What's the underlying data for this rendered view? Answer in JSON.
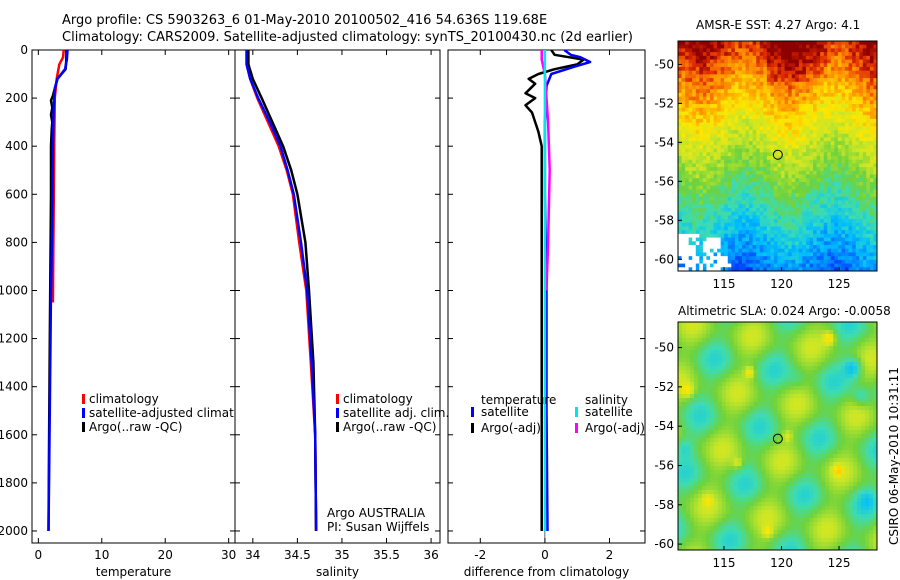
{
  "header": {
    "line1": "Argo profile: CS 5903263_6 01-May-2010 20100502_416 54.636S 119.68E",
    "line2": "Climatology: CARS2009. Satellite-adjusted climatology: synTS_20100430.nc (2d earlier)"
  },
  "footer_stamp": "CSIRO 06-May-2010 10:31:11",
  "colors": {
    "climatology": "#ff0000",
    "satellite": "#0000ff",
    "argo": "#000000",
    "salinity_satellite": "#00e5ee",
    "salinity_argo": "#ff00ff"
  },
  "chart_data": [
    {
      "type": "line",
      "panel": "temperature",
      "xlabel": "temperature",
      "ylabel": "depth",
      "xlim": [
        -1,
        31
      ],
      "ylim": [
        0,
        2050
      ],
      "yreversed": true,
      "xticks": [
        0,
        10,
        20,
        30
      ],
      "yticks": [
        0,
        200,
        400,
        600,
        800,
        1000,
        1200,
        1400,
        1600,
        1800,
        2000
      ],
      "legend": [
        {
          "label": "climatology",
          "color": "#ff0000"
        },
        {
          "label": "satellite-adjusted climatology",
          "color": "#0000ff"
        },
        {
          "label": "Argo(..raw -QC)",
          "color": "#000000"
        }
      ],
      "series": [
        {
          "name": "climatology",
          "color": "#ff0000",
          "points": [
            [
              4.0,
              0
            ],
            [
              3.9,
              30
            ],
            [
              3.3,
              60
            ],
            [
              2.9,
              120
            ],
            [
              2.6,
              200
            ],
            [
              2.5,
              400
            ],
            [
              2.4,
              700
            ],
            [
              2.3,
              1050
            ]
          ]
        },
        {
          "name": "Argo",
          "color": "#000000",
          "points": [
            [
              4.4,
              0
            ],
            [
              4.4,
              40
            ],
            [
              4.3,
              80
            ],
            [
              3.0,
              120
            ],
            [
              2.6,
              160
            ],
            [
              2.3,
              190
            ],
            [
              2.0,
              210
            ],
            [
              2.2,
              240
            ],
            [
              2.0,
              270
            ],
            [
              2.2,
              300
            ],
            [
              2.1,
              330
            ],
            [
              2.0,
              400
            ],
            [
              2.0,
              600
            ],
            [
              1.9,
              900
            ],
            [
              1.8,
              1200
            ],
            [
              1.7,
              1600
            ],
            [
              1.6,
              2000
            ]
          ]
        },
        {
          "name": "satellite-adjusted climatology",
          "color": "#0000ff",
          "points": [
            [
              4.6,
              0
            ],
            [
              4.5,
              40
            ],
            [
              4.2,
              80
            ],
            [
              3.0,
              120
            ],
            [
              2.6,
              160
            ],
            [
              2.4,
              250
            ],
            [
              2.3,
              400
            ],
            [
              2.2,
              700
            ],
            [
              2.0,
              1000
            ],
            [
              1.8,
              1500
            ],
            [
              1.6,
              2000
            ]
          ]
        }
      ]
    },
    {
      "type": "line",
      "panel": "salinity",
      "xlabel": "salinity",
      "xlim": [
        33.8,
        36.1
      ],
      "ylim": [
        0,
        2050
      ],
      "yreversed": true,
      "xticks": [
        34,
        34.5,
        35,
        35.5,
        36
      ],
      "legend": [
        {
          "label": "climatology",
          "color": "#ff0000"
        },
        {
          "label": "satellite adj. clim.",
          "color": "#0000ff"
        },
        {
          "label": "Argo(..raw -QC)",
          "color": "#000000"
        }
      ],
      "annotation": [
        "Argo AUSTRALIA",
        "PI: Susan Wijffels"
      ],
      "series": [
        {
          "name": "climatology",
          "color": "#ff0000",
          "points": [
            [
              33.93,
              0
            ],
            [
              33.93,
              60
            ],
            [
              33.97,
              120
            ],
            [
              34.05,
              200
            ],
            [
              34.17,
              300
            ],
            [
              34.29,
              400
            ],
            [
              34.38,
              500
            ],
            [
              34.45,
              600
            ],
            [
              34.52,
              800
            ],
            [
              34.6,
              1000
            ],
            [
              34.65,
              1300
            ],
            [
              34.7,
              1600
            ],
            [
              34.71,
              2000
            ]
          ]
        },
        {
          "name": "Argo",
          "color": "#000000",
          "points": [
            [
              33.95,
              0
            ],
            [
              33.95,
              60
            ],
            [
              34.0,
              120
            ],
            [
              34.1,
              200
            ],
            [
              34.22,
              300
            ],
            [
              34.34,
              400
            ],
            [
              34.43,
              500
            ],
            [
              34.5,
              600
            ],
            [
              34.59,
              800
            ],
            [
              34.63,
              1000
            ],
            [
              34.68,
              1300
            ],
            [
              34.7,
              1600
            ],
            [
              34.71,
              2000
            ]
          ]
        },
        {
          "name": "satellite adj. clim.",
          "color": "#0000ff",
          "points": [
            [
              33.93,
              0
            ],
            [
              33.93,
              60
            ],
            [
              33.97,
              120
            ],
            [
              34.06,
              200
            ],
            [
              34.19,
              300
            ],
            [
              34.31,
              400
            ],
            [
              34.39,
              500
            ],
            [
              34.46,
              600
            ],
            [
              34.54,
              800
            ],
            [
              34.61,
              1000
            ],
            [
              34.66,
              1300
            ],
            [
              34.7,
              1600
            ],
            [
              34.71,
              2000
            ]
          ]
        }
      ]
    },
    {
      "type": "line",
      "panel": "difference",
      "xlabel": "difference from climatology",
      "xlim": [
        -3,
        3.1
      ],
      "ylim": [
        0,
        2050
      ],
      "yreversed": true,
      "xticks": [
        -2,
        0,
        2
      ],
      "legend_groups": [
        {
          "title": "temperature",
          "items": [
            {
              "label": "satellite",
              "color": "#0000ff"
            },
            {
              "label": "Argo(-adj)",
              "color": "#000000"
            }
          ]
        },
        {
          "title": "salinity",
          "items": [
            {
              "label": "satellite",
              "color": "#00e5ee"
            },
            {
              "label": "Argo(-adj)",
              "color": "#ff00ff"
            }
          ]
        }
      ],
      "series": [
        {
          "name": "temperature Argo(-adj)",
          "color": "#000000",
          "points": [
            [
              0.2,
              0
            ],
            [
              0.3,
              20
            ],
            [
              1.2,
              40
            ],
            [
              1.0,
              60
            ],
            [
              0.3,
              80
            ],
            [
              -0.2,
              100
            ],
            [
              -0.5,
              120
            ],
            [
              -0.3,
              140
            ],
            [
              -0.6,
              180
            ],
            [
              -0.3,
              200
            ],
            [
              -0.6,
              230
            ],
            [
              -0.4,
              260
            ],
            [
              -0.3,
              300
            ],
            [
              -0.2,
              340
            ],
            [
              -0.1,
              400
            ],
            [
              -0.1,
              700
            ],
            [
              -0.1,
              1000
            ],
            [
              -0.1,
              1500
            ],
            [
              -0.1,
              2000
            ]
          ]
        },
        {
          "name": "temperature satellite",
          "color": "#0000ff",
          "points": [
            [
              0.6,
              0
            ],
            [
              0.8,
              20
            ],
            [
              1.1,
              30
            ],
            [
              1.4,
              50
            ],
            [
              0.9,
              70
            ],
            [
              0.2,
              100
            ],
            [
              0.05,
              150
            ],
            [
              0.0,
              300
            ],
            [
              0.0,
              600
            ],
            [
              0.05,
              1000
            ],
            [
              0.05,
              1500
            ],
            [
              0.08,
              2000
            ]
          ]
        },
        {
          "name": "salinity Argo(-adj)",
          "color": "#ff00ff",
          "points": [
            [
              -0.1,
              0
            ],
            [
              -0.1,
              40
            ],
            [
              0.0,
              100
            ],
            [
              0.1,
              300
            ],
            [
              0.15,
              500
            ],
            [
              0.1,
              800
            ],
            [
              0.05,
              1000
            ]
          ]
        },
        {
          "name": "salinity satellite",
          "color": "#00e5ee",
          "points": [
            [
              0.0,
              0
            ],
            [
              0.0,
              500
            ],
            [
              0.0,
              1000
            ],
            [
              0.0,
              1500
            ],
            [
              0.0,
              2000
            ]
          ]
        }
      ]
    },
    {
      "type": "heatmap",
      "panel": "sst",
      "title": "AMSR-E SST: 4.27 Argo: 4.1",
      "xticks": [
        115,
        120,
        125
      ],
      "yticks": [
        -50,
        -52,
        -54,
        -56,
        -58,
        -60
      ],
      "xlim": [
        111,
        128.3
      ],
      "ylim": [
        -60.6,
        -48.8
      ],
      "marker": {
        "lon": 119.68,
        "lat": -54.636
      }
    },
    {
      "type": "heatmap",
      "panel": "sla",
      "title": "Altimetric SLA: 0.024 Argo: -0.0058",
      "xticks": [
        115,
        120,
        125
      ],
      "yticks": [
        -50,
        -52,
        -54,
        -56,
        -58,
        -60
      ],
      "xlim": [
        111,
        128.3
      ],
      "ylim": [
        -60.3,
        -48.7
      ],
      "marker": {
        "lon": 119.68,
        "lat": -54.636
      }
    }
  ]
}
